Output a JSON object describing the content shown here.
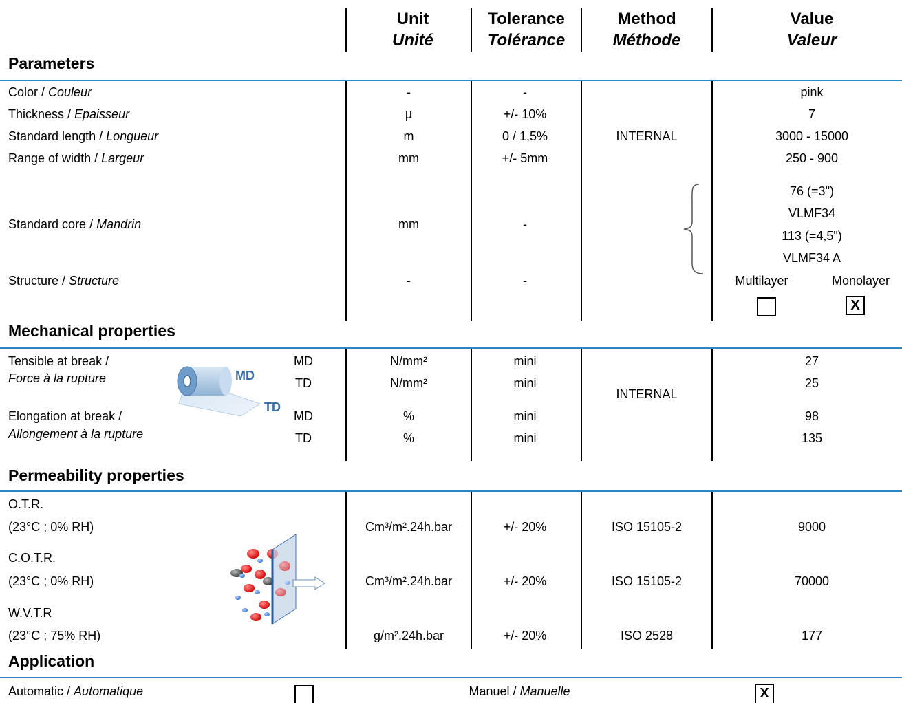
{
  "headers": {
    "unit": {
      "en": "Unit",
      "fr": "Unité"
    },
    "tolerance": {
      "en": "Tolerance",
      "fr": "Tolérance"
    },
    "method": {
      "en": "Method",
      "fr": "Méthode"
    },
    "value": {
      "en": "Value",
      "fr": "Valeur"
    }
  },
  "sections": {
    "parameters": "Parameters",
    "mechanical": "Mechanical properties",
    "permeability": "Permeability properties",
    "application": "Application"
  },
  "parameters": {
    "color": {
      "en": "Color / ",
      "fr": "Couleur",
      "unit": "-",
      "tol": "-",
      "value": "pink"
    },
    "thickness": {
      "en": "Thickness / ",
      "fr": "Epaisseur",
      "unit": "µ",
      "tol": "+/- 10%",
      "value": "7"
    },
    "length": {
      "en": "Standard length / ",
      "fr": "Longueur",
      "unit": "m",
      "tol": "0 / 1,5%",
      "value": "3000 - 15000"
    },
    "width": {
      "en": "Range of width / ",
      "fr": "Largeur",
      "unit": "mm",
      "tol": "+/- 5mm",
      "value": "250 - 900"
    },
    "core": {
      "en": "Standard core / ",
      "fr": "Mandrin",
      "unit": "mm",
      "tol": "-",
      "values": [
        "76 (=3\")",
        "VLMF34",
        "113 (=4,5\")",
        "VLMF34 A"
      ]
    },
    "structure": {
      "en": "Structure / ",
      "fr": "Structure",
      "unit": "-",
      "tol": "-",
      "opt1": "Multilayer",
      "opt2": "Monolayer",
      "opt1_mark": "",
      "opt2_mark": "X"
    },
    "method": "INTERNAL"
  },
  "mechanical": {
    "tensile": {
      "en": "Tensible at break /",
      "fr": "Force à la rupture"
    },
    "elongation": {
      "en": "Elongation at break /",
      "fr": "Allongement à la rupture"
    },
    "diagram": {
      "md": "MD",
      "td": "TD"
    },
    "rows": [
      {
        "dir": "MD",
        "unit": "N/mm²",
        "tol": "mini",
        "value": "27"
      },
      {
        "dir": "TD",
        "unit": "N/mm²",
        "tol": "mini",
        "value": "25"
      },
      {
        "dir": "MD",
        "unit": "%",
        "tol": "mini",
        "value": "98"
      },
      {
        "dir": "TD",
        "unit": "%",
        "tol": "mini",
        "value": "135"
      }
    ],
    "method": "INTERNAL"
  },
  "permeability": [
    {
      "name": "O.T.R.",
      "cond": "(23°C ; 0% RH)",
      "unit": "Cm³/m².24h.bar",
      "tol": "+/- 20%",
      "method": "ISO 15105-2",
      "value": "9000"
    },
    {
      "name": "C.O.T.R.",
      "cond": "(23°C ; 0% RH)",
      "unit": "Cm³/m².24h.bar",
      "tol": "+/- 20%",
      "method": "ISO 15105-2",
      "value": "70000"
    },
    {
      "name": "W.V.T.R",
      "cond": "(23°C ; 75% RH)",
      "unit": "g/m².24h.bar",
      "tol": "+/- 20%",
      "method": "ISO 2528",
      "value": "177"
    }
  ],
  "application": {
    "auto_en": "Automatic / ",
    "auto_fr": "Automatique",
    "auto_mark": "",
    "manual_en": "Manuel / ",
    "manual_fr": "Manuelle",
    "manual_mark": "X"
  },
  "colors": {
    "rule": "#2a86c6",
    "diagram_text": "#3a6ea5"
  }
}
